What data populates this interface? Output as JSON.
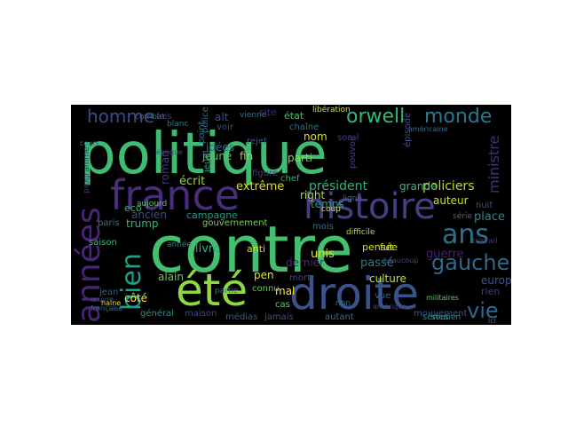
{
  "wordcloud": {
    "words": [
      {
        "text": "politique",
        "color": "#3fbc73"
      },
      {
        "text": "contre",
        "color": "#44bf70"
      },
      {
        "text": "france",
        "color": "#472d7b"
      },
      {
        "text": "histoire",
        "color": "#433e85"
      },
      {
        "text": "droite",
        "color": "#3b528b"
      },
      {
        "text": "été",
        "color": "#8fd744"
      },
      {
        "text": "années",
        "color": "#482576"
      },
      {
        "text": "bien",
        "color": "#1f9e89"
      },
      {
        "text": "ans",
        "color": "#2c728e"
      },
      {
        "text": "gauche",
        "color": "#31688e"
      },
      {
        "text": "orwell",
        "color": "#35b779"
      },
      {
        "text": "monde",
        "color": "#2a788e"
      },
      {
        "text": "homme",
        "color": "#3e4989"
      },
      {
        "text": "vie",
        "color": "#31688e"
      },
      {
        "text": "ministre",
        "color": "#472f7d"
      },
      {
        "text": "policiers",
        "color": "#b5de2b"
      },
      {
        "text": "président",
        "color": "#2db27d"
      },
      {
        "text": "extrême",
        "color": "#d8e219"
      },
      {
        "text": "écrit",
        "color": "#9bd93c"
      },
      {
        "text": "idées",
        "color": "#2e6f8e"
      },
      {
        "text": "jeune",
        "color": "#54c568"
      },
      {
        "text": "trump",
        "color": "#31b57b"
      },
      {
        "text": "livre",
        "color": "#28ae80"
      },
      {
        "text": "alain",
        "color": "#67cc5c"
      },
      {
        "text": "côté",
        "color": "#fde725"
      },
      {
        "text": "culture",
        "color": "#c2df23"
      },
      {
        "text": "passé",
        "color": "#2a788e"
      },
      {
        "text": "guerre",
        "color": "#482173"
      },
      {
        "text": "europe",
        "color": "#38588c"
      },
      {
        "text": "rien",
        "color": "#443a83"
      },
      {
        "text": "grande",
        "color": "#35b779"
      },
      {
        "text": "auteur",
        "color": "#d0e11c"
      },
      {
        "text": "place",
        "color": "#238a8d"
      },
      {
        "text": "temps",
        "color": "#1fa088"
      },
      {
        "text": "right",
        "color": "#a0da39"
      },
      {
        "text": "unis",
        "color": "#e5e419"
      },
      {
        "text": "mois",
        "color": "#2c728e"
      },
      {
        "text": "parti",
        "color": "#8ed645"
      },
      {
        "text": "nom",
        "color": "#d5e21a"
      },
      {
        "text": "état",
        "color": "#44bf70"
      },
      {
        "text": "fin",
        "color": "#aadc32"
      },
      {
        "text": "alt",
        "color": "#3b528b"
      },
      {
        "text": "eco",
        "color": "#35b779"
      },
      {
        "text": "campagne",
        "color": "#1f9a8a"
      },
      {
        "text": "gouvernement",
        "color": "#7ad151"
      },
      {
        "text": "mal",
        "color": "#fde725"
      },
      {
        "text": "saison",
        "color": "#3dbc74"
      },
      {
        "text": "paris",
        "color": "#2c728e"
      },
      {
        "text": "anti",
        "color": "#d2e21b"
      },
      {
        "text": "pen",
        "color": "#e7e419"
      },
      {
        "text": "séries",
        "color": "#25848e"
      },
      {
        "text": "médias",
        "color": "#365d8d"
      },
      {
        "text": "jamais",
        "color": "#3b528b"
      },
      {
        "text": "cas",
        "color": "#5ec962"
      },
      {
        "text": "autant",
        "color": "#2c728e"
      },
      {
        "text": "maison",
        "color": "#3e4a89"
      },
      {
        "text": "général",
        "color": "#21918c"
      },
      {
        "text": "jean",
        "color": "#33638d"
      },
      {
        "text": "pensée",
        "color": "#d5e21a"
      },
      {
        "text": "fut",
        "color": "#c8e020"
      },
      {
        "text": "chef",
        "color": "#2fb47c"
      },
      {
        "text": "rejet",
        "color": "#39568c"
      },
      {
        "text": "aujourd",
        "color": "#5ec962"
      },
      {
        "text": "roman",
        "color": "#443983"
      },
      {
        "text": "ancien",
        "color": "#3e4c8a"
      },
      {
        "text": "voir",
        "color": "#3e4c8a"
      },
      {
        "text": "site",
        "color": "#482475"
      },
      {
        "text": "police",
        "color": "#2c728e"
      },
      {
        "text": "fois",
        "color": "#46327e"
      },
      {
        "text": "vue",
        "color": "#31688e"
      },
      {
        "text": "nuit",
        "color": "#3e4c8a"
      },
      {
        "text": "mouvement",
        "color": "#3b528b"
      },
      {
        "text": "dernier",
        "color": "#482979"
      },
      {
        "text": "figure",
        "color": "#433e85"
      },
      {
        "text": "connu",
        "color": "#5ec962"
      },
      {
        "text": "point",
        "color": "#2a788e"
      },
      {
        "text": "jeudi",
        "color": "#1f9e89"
      },
      {
        "text": "pouvoir",
        "color": "#433e85"
      },
      {
        "text": "soral",
        "color": "#443983"
      },
      {
        "text": "chaîne",
        "color": "#2c728e"
      },
      {
        "text": "libération",
        "color": "#d2e21b"
      },
      {
        "text": "épisode",
        "color": "#3b528b"
      },
      {
        "text": "ligne",
        "color": "#2c728e"
      },
      {
        "text": "coup",
        "color": "#e5e419"
      },
      {
        "text": "difficile",
        "color": "#b8de29"
      },
      {
        "text": "année",
        "color": "#25848e"
      },
      {
        "text": "non",
        "color": "#2c728e"
      },
      {
        "text": "soutien",
        "color": "#1f9e89"
      },
      {
        "text": "ici",
        "color": "#238a8d"
      },
      {
        "text": "beaucoup",
        "color": "#414487"
      },
      {
        "text": "programme",
        "color": "#46307e"
      },
      {
        "text": "vienne",
        "color": "#2c728e"
      },
      {
        "text": "combat",
        "color": "#2c728e"
      },
      {
        "text": "blanc",
        "color": "#2a788e"
      },
      {
        "text": "époque",
        "color": "#3e4a89"
      },
      {
        "text": "française",
        "color": "#2c728e"
      },
      {
        "text": "œuvre",
        "color": "#3b528b"
      },
      {
        "text": "partie",
        "color": "#2c728e"
      },
      {
        "text": "amérique",
        "color": "#3e4a89"
      },
      {
        "text": "américaine",
        "color": "#2c728e"
      },
      {
        "text": "militaires",
        "color": "#5ec962"
      },
      {
        "text": "travail",
        "color": "#46307e"
      },
      {
        "text": "haine",
        "color": "#d8e219"
      },
      {
        "text": "mort",
        "color": "#3e4a89"
      },
      {
        "text": "cours",
        "color": "#2c728e"
      },
      {
        "text": "série",
        "color": "#2c728e"
      }
    ]
  }
}
